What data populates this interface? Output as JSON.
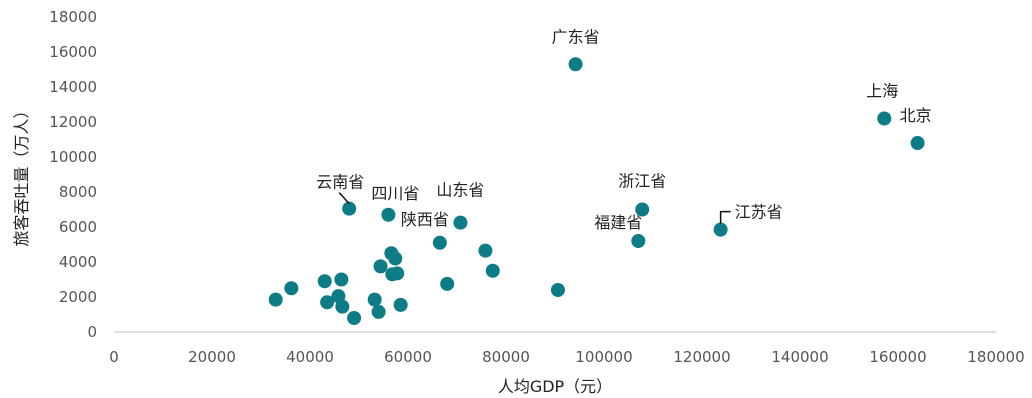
{
  "chart_data": {
    "type": "scatter",
    "title": "",
    "xlabel": "人均GDP（元）",
    "ylabel": "旅客吞吐量（万人）",
    "xlim": [
      0,
      180000
    ],
    "ylim": [
      0,
      18000
    ],
    "xticks": [
      "0",
      "20000",
      "40000",
      "60000",
      "80000",
      "100000",
      "120000",
      "140000",
      "160000",
      "180000"
    ],
    "yticks": [
      "0",
      "2000",
      "4000",
      "6000",
      "8000",
      "10000",
      "12000",
      "14000",
      "16000",
      "18000"
    ],
    "grid": false,
    "legend": "none",
    "marker_color": "#0e7c86",
    "points": [
      {
        "x": 94200,
        "y": 15300,
        "label": "广东省"
      },
      {
        "x": 157200,
        "y": 12200,
        "label": "上海"
      },
      {
        "x": 164000,
        "y": 10800,
        "label": "北京"
      },
      {
        "x": 107800,
        "y": 7000,
        "label": "浙江省"
      },
      {
        "x": 107000,
        "y": 5200,
        "label": "福建省"
      },
      {
        "x": 123800,
        "y": 5850,
        "label": "江苏省"
      },
      {
        "x": 48000,
        "y": 7050,
        "label": "云南省"
      },
      {
        "x": 56000,
        "y": 6700,
        "label": "四川省"
      },
      {
        "x": 70700,
        "y": 6250,
        "label": "山东省"
      },
      {
        "x": 66500,
        "y": 5100,
        "label": "陕西省"
      },
      {
        "x": 33000,
        "y": 1850,
        "label": ""
      },
      {
        "x": 36200,
        "y": 2500,
        "label": ""
      },
      {
        "x": 43000,
        "y": 2900,
        "label": ""
      },
      {
        "x": 43500,
        "y": 1700,
        "label": ""
      },
      {
        "x": 45800,
        "y": 2050,
        "label": ""
      },
      {
        "x": 46400,
        "y": 3000,
        "label": ""
      },
      {
        "x": 46600,
        "y": 1450,
        "label": ""
      },
      {
        "x": 49000,
        "y": 800,
        "label": ""
      },
      {
        "x": 53200,
        "y": 1850,
        "label": ""
      },
      {
        "x": 54000,
        "y": 1150,
        "label": ""
      },
      {
        "x": 54400,
        "y": 3750,
        "label": ""
      },
      {
        "x": 56600,
        "y": 4500,
        "label": ""
      },
      {
        "x": 56800,
        "y": 3300,
        "label": ""
      },
      {
        "x": 57400,
        "y": 4200,
        "label": ""
      },
      {
        "x": 57800,
        "y": 3350,
        "label": ""
      },
      {
        "x": 58500,
        "y": 1550,
        "label": ""
      },
      {
        "x": 68000,
        "y": 2750,
        "label": ""
      },
      {
        "x": 75800,
        "y": 4650,
        "label": ""
      },
      {
        "x": 77300,
        "y": 3500,
        "label": ""
      },
      {
        "x": 90600,
        "y": 2400,
        "label": ""
      }
    ]
  }
}
